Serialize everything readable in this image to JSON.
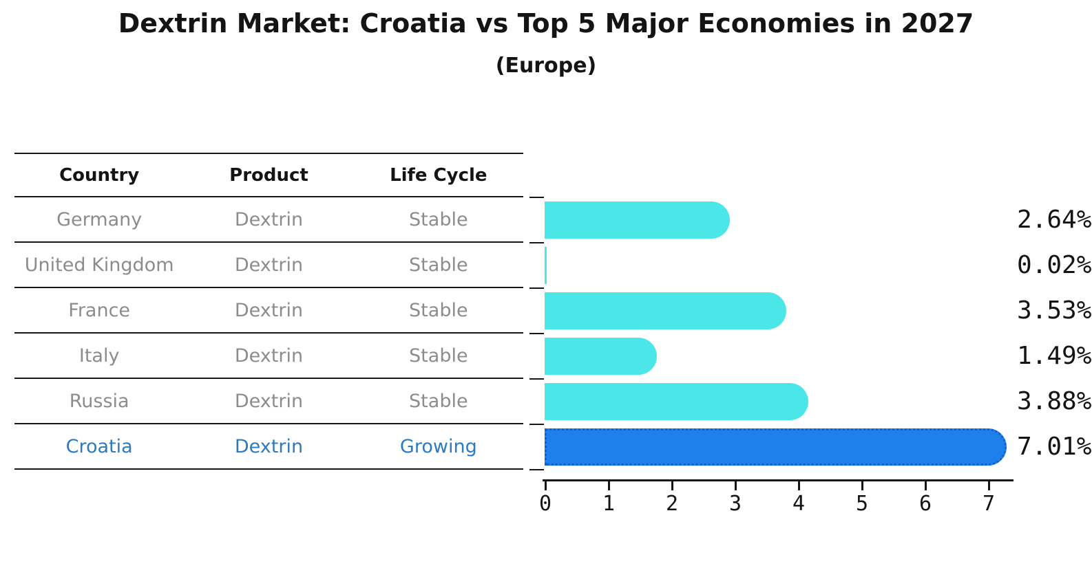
{
  "chart_data": {
    "type": "bar",
    "orientation": "horizontal",
    "title": "Dextrin Market: Croatia vs Top 5 Major Economies in 2027",
    "subtitle": "(Europe)",
    "categories": [
      "Germany",
      "United Kingdom",
      "France",
      "Italy",
      "Russia",
      "Croatia"
    ],
    "values": [
      2.64,
      0.02,
      3.53,
      1.49,
      3.88,
      7.01
    ],
    "value_labels": [
      "2.64%",
      "0.02%",
      "3.53%",
      "1.49%",
      "3.88%",
      "7.01%"
    ],
    "xticks": [
      "0",
      "1",
      "2",
      "3",
      "4",
      "5",
      "6",
      "7"
    ],
    "xlim": [
      0,
      7.4
    ],
    "xlabel": "",
    "ylabel": "",
    "grid": false,
    "legend": null,
    "bar_color": "#4ae6e8",
    "highlight_color": "#1e80eb",
    "highlight_border_color": "#0d5fd0",
    "highlight_index": 5
  },
  "table": {
    "headers": [
      "Country",
      "Product",
      "Life Cycle"
    ],
    "rows": [
      {
        "country": "Germany",
        "product": "Dextrin",
        "life_cycle": "Stable"
      },
      {
        "country": "United Kingdom",
        "product": "Dextrin",
        "life_cycle": "Stable"
      },
      {
        "country": "France",
        "product": "Dextrin",
        "life_cycle": "Stable"
      },
      {
        "country": "Italy",
        "product": "Dextrin",
        "life_cycle": "Stable"
      },
      {
        "country": "Russia",
        "product": "Dextrin",
        "life_cycle": "Stable"
      },
      {
        "country": "Croatia",
        "product": "Dextrin",
        "life_cycle": "Growing"
      }
    ],
    "highlight_row": "Croatia",
    "text_color": "#8c8c8c",
    "highlight_text_color": "#2d7ac1"
  }
}
